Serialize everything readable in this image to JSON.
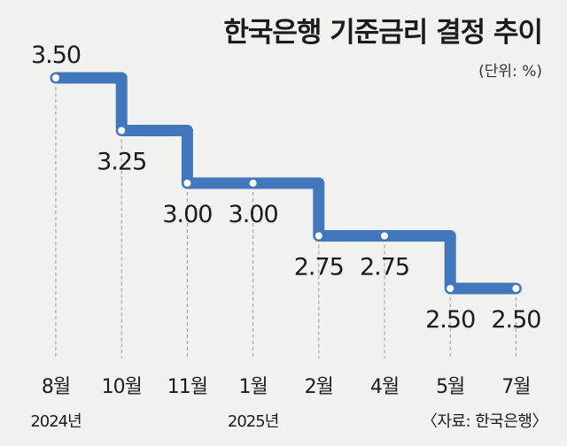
{
  "chart_data": {
    "type": "line",
    "step": true,
    "title": "한국은행 기준금리 결정 추이",
    "unit_note": "(단위: %)",
    "categories": [
      "8월",
      "10월",
      "11월",
      "1월",
      "2월",
      "4월",
      "5월",
      "7월"
    ],
    "values": [
      3.5,
      3.25,
      3.0,
      3.0,
      2.75,
      2.75,
      2.5,
      2.5
    ],
    "value_labels": [
      "3.50",
      "3.25",
      "3.00",
      "3.00",
      "2.75",
      "2.75",
      "2.50",
      "2.50"
    ],
    "year_labels": [
      {
        "text": "2024년",
        "category_index": 0
      },
      {
        "text": "2025년",
        "category_index": 3
      }
    ],
    "source": "〈자료: 한국은행〉",
    "grid": false,
    "colors": {
      "line": "#4277bb",
      "background": "#f1f1f0",
      "marker": "#ffffff",
      "dropline": "#9a9a9a"
    }
  }
}
